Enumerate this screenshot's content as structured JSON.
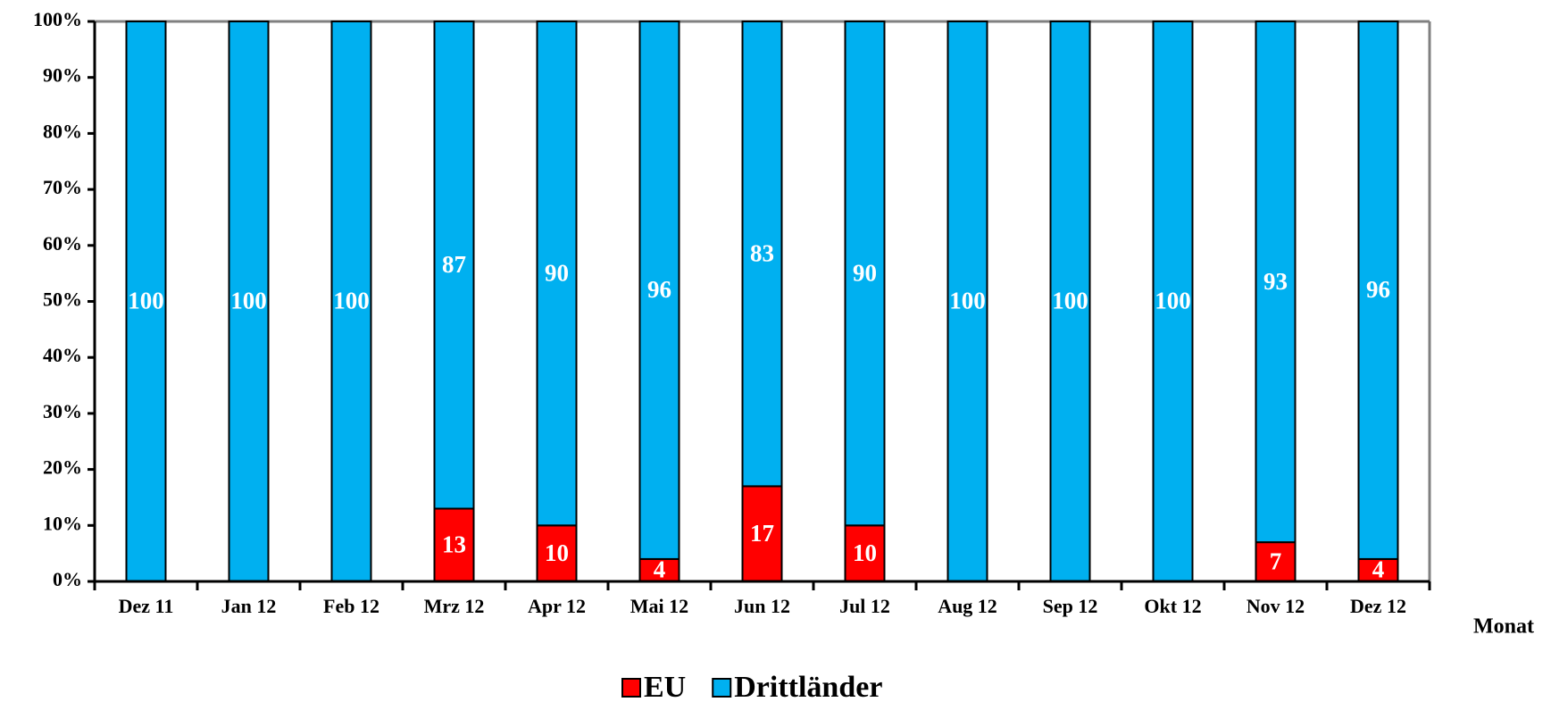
{
  "chart_data": {
    "type": "stacked_bar",
    "x_label": "Monat",
    "categories": [
      "Dez 11",
      "Jan 12",
      "Feb 12",
      "Mrz 12",
      "Apr 12",
      "Mai 12",
      "Jun 12",
      "Jul 12",
      "Aug 12",
      "Sep 12",
      "Okt 12",
      "Nov 12",
      "Dez 12"
    ],
    "series": [
      {
        "name": "EU",
        "color": "#ff0000",
        "values": [
          0,
          0,
          0,
          13,
          10,
          4,
          17,
          10,
          0,
          0,
          0,
          7,
          4
        ]
      },
      {
        "name": "Drittländer",
        "color": "#00b0f0",
        "values": [
          100,
          100,
          100,
          87,
          90,
          96,
          83,
          90,
          100,
          100,
          100,
          93,
          96
        ]
      }
    ],
    "ylim": [
      0,
      100
    ],
    "yticks": [
      {
        "value": 0,
        "label": "0%"
      },
      {
        "value": 10,
        "label": "10%"
      },
      {
        "value": 20,
        "label": "20%"
      },
      {
        "value": 30,
        "label": "30%"
      },
      {
        "value": 40,
        "label": "40%"
      },
      {
        "value": 50,
        "label": "50%"
      },
      {
        "value": 60,
        "label": "60%"
      },
      {
        "value": 70,
        "label": "70%"
      },
      {
        "value": 80,
        "label": "80%"
      },
      {
        "value": 90,
        "label": "90%"
      },
      {
        "value": 100,
        "label": "100%"
      }
    ],
    "legend": "bottom"
  }
}
